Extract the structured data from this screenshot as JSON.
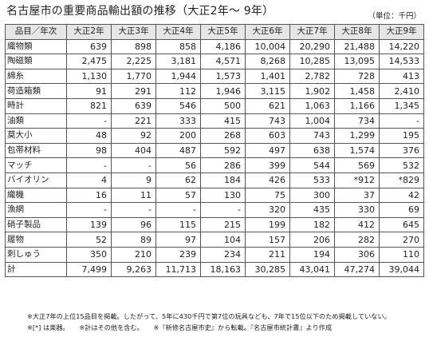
{
  "title": "名古屋市の重要商品輸出額の推移（大正2年〜 9年）",
  "unit": "（単位：千円）",
  "table": {
    "corner": "品目／年次",
    "years": [
      "大正2年",
      "大正3年",
      "大正4年",
      "大正5年",
      "大正6年",
      "大正7年",
      "大正8年",
      "大正9年"
    ],
    "rows": [
      {
        "name": "織物類",
        "values": [
          "639",
          "898",
          "858",
          "4,186",
          "10,004",
          "20,290",
          "21,488",
          "14,220"
        ]
      },
      {
        "name": "陶磁類",
        "values": [
          "2,475",
          "2,225",
          "3,181",
          "4,571",
          "8,268",
          "10,285",
          "13,095",
          "14,533"
        ]
      },
      {
        "name": "綿糸",
        "values": [
          "1,130",
          "1,770",
          "1,944",
          "1,573",
          "1,401",
          "2,782",
          "728",
          "413"
        ]
      },
      {
        "name": "荷造箱類",
        "values": [
          "91",
          "291",
          "112",
          "1,946",
          "3,115",
          "1,902",
          "1,458",
          "2,410"
        ]
      },
      {
        "name": "時計",
        "values": [
          "821",
          "639",
          "546",
          "500",
          "621",
          "1,063",
          "1,166",
          "1,345"
        ]
      },
      {
        "name": "油類",
        "values": [
          "-",
          "221",
          "333",
          "415",
          "743",
          "1,004",
          "734",
          "-"
        ]
      },
      {
        "name": "莫大小",
        "values": [
          "48",
          "92",
          "200",
          "268",
          "603",
          "743",
          "1,299",
          "195"
        ]
      },
      {
        "name": "包帯材料",
        "values": [
          "98",
          "404",
          "487",
          "592",
          "497",
          "638",
          "1,574",
          "376"
        ]
      },
      {
        "name": "マッチ",
        "values": [
          "-",
          "-",
          "56",
          "286",
          "399",
          "544",
          "569",
          "532"
        ]
      },
      {
        "name": "バイオリン",
        "values": [
          "4",
          "9",
          "62",
          "184",
          "426",
          "533",
          "*912",
          "*829"
        ]
      },
      {
        "name": "織機",
        "values": [
          "16",
          "11",
          "57",
          "130",
          "75",
          "300",
          "37",
          "42"
        ]
      },
      {
        "name": "漁網",
        "values": [
          "-",
          "-",
          "-",
          "-",
          "320",
          "435",
          "330",
          "69"
        ]
      },
      {
        "name": "硝子製品",
        "values": [
          "139",
          "96",
          "115",
          "215",
          "199",
          "182",
          "412",
          "645"
        ]
      },
      {
        "name": "履物",
        "values": [
          "52",
          "89",
          "97",
          "104",
          "157",
          "206",
          "282",
          "270"
        ]
      },
      {
        "name": "刺しゅう",
        "values": [
          "350",
          "210",
          "239",
          "234",
          "211",
          "194",
          "306",
          "110"
        ]
      },
      {
        "name": "計",
        "values": [
          "7,499",
          "9,263",
          "11,713",
          "18,163",
          "30,285",
          "43,041",
          "47,274",
          "39,044"
        ]
      }
    ]
  },
  "footnotes": {
    "line1": "※大正7年の上位15品目を掲載。したがって、5年に430千円で第7位の玩具なども、7年で15位以下のため掲載していない。",
    "line2a": "※[*] は楽器。",
    "line2b": "※計はその他を含む。",
    "line2c": "※『新修名古屋市史』から転載。『名古屋市統計書』より作成"
  }
}
